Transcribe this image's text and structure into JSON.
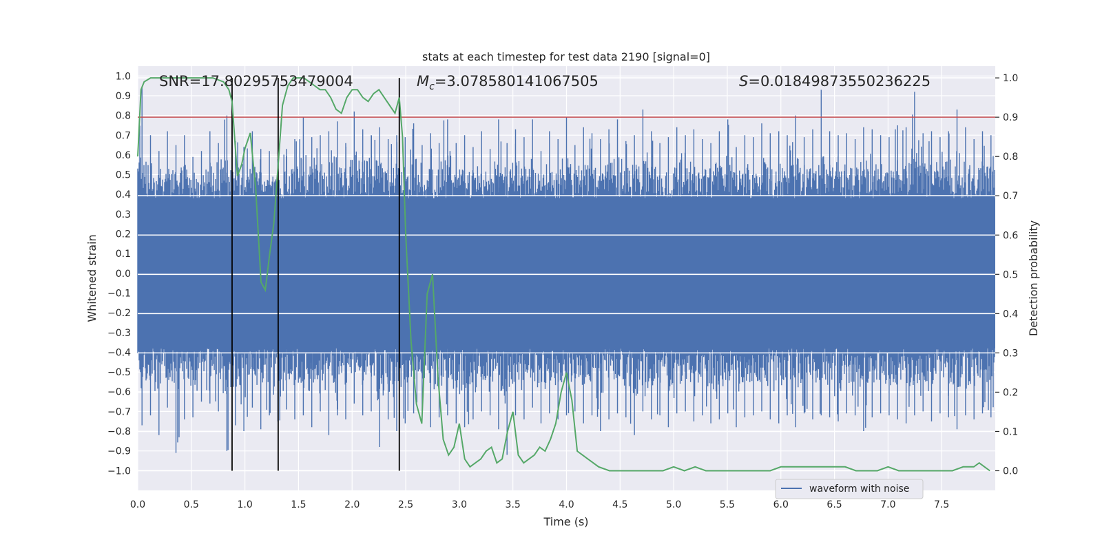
{
  "chart_data": {
    "type": "line",
    "title": "stats at each timestep for test data 2190 [signal=0]",
    "xlabel": "Time (s)",
    "ylabel": "Whitened strain",
    "y2label": "Detection probability",
    "xlim": [
      0.0,
      8.0
    ],
    "ylim": [
      -1.1,
      1.05
    ],
    "y2lim": [
      -0.05,
      1.03
    ],
    "xticks": [
      "0.0",
      "0.5",
      "1.0",
      "1.5",
      "2.0",
      "2.5",
      "3.0",
      "3.5",
      "4.0",
      "4.5",
      "5.0",
      "5.5",
      "6.0",
      "6.5",
      "7.0",
      "7.5"
    ],
    "yticks": [
      "1.0",
      "0.9",
      "0.8",
      "0.7",
      "0.6",
      "0.5",
      "0.4",
      "0.3",
      "0.2",
      "0.1",
      "0.0",
      "−0.1",
      "−0.2",
      "−0.3",
      "−0.4",
      "−0.5",
      "−0.6",
      "−0.7",
      "−0.8",
      "−0.9",
      "−1.0"
    ],
    "y2ticks": [
      "1.0",
      "0.9",
      "0.8",
      "0.7",
      "0.6",
      "0.5",
      "0.4",
      "0.3",
      "0.2",
      "0.1",
      "0.0"
    ],
    "grid": true,
    "legend_placement": "lower-right",
    "annotations": {
      "snr": "SNR=17.80295753479004",
      "mc_symbol": "M",
      "mc_sub": "c",
      "mc_value": "=3.078580141067505",
      "s_symbol": "S",
      "s_value": "=0.01849873550236225"
    },
    "vertical_markers": [
      0.88,
      1.31,
      2.44
    ],
    "threshold": 0.9,
    "waveform": {
      "name": "waveform with noise",
      "color": "#4c72b0",
      "envelope_pos": [
        0.94,
        0.7,
        0.62,
        0.72,
        0.65,
        0.7,
        0.59,
        0.62,
        0.72,
        0.66,
        0.8,
        0.67,
        0.64,
        0.72,
        0.63,
        0.62,
        0.58,
        0.63,
        0.68,
        0.79,
        0.69,
        0.7,
        0.72,
        0.77,
        0.66,
        0.82,
        0.73,
        0.7,
        0.74,
        0.68,
        0.7,
        0.69,
        0.76,
        0.65,
        0.71,
        0.66,
        0.78,
        0.66,
        0.7,
        0.64,
        0.72,
        0.63,
        0.78,
        0.66,
        0.73,
        0.69,
        0.78,
        0.62,
        0.72,
        0.68,
        0.79,
        0.65,
        0.74,
        0.71,
        0.68,
        0.73,
        0.78,
        0.67,
        0.7,
        0.83,
        0.72,
        0.66,
        0.69,
        0.74,
        0.7,
        0.73,
        0.68,
        0.66,
        0.72,
        0.78,
        0.64,
        0.7,
        0.69,
        0.76,
        0.71,
        0.72,
        0.7,
        0.8,
        0.69,
        0.73,
        0.93,
        0.72,
        0.7,
        0.71,
        0.68,
        0.74,
        0.73,
        0.7,
        0.69,
        0.75,
        0.74,
        0.92,
        0.71,
        0.72,
        0.69,
        0.72,
        0.83,
        0.74,
        0.68,
        0.72,
        0.7
      ],
      "envelope_neg": [
        -0.77,
        -0.72,
        -0.82,
        -0.68,
        -0.91,
        -0.74,
        -0.73,
        -0.65,
        -0.66,
        -0.7,
        -0.9,
        -0.77,
        -0.8,
        -0.68,
        -0.79,
        -0.72,
        -0.75,
        -0.69,
        -0.74,
        -0.72,
        -0.78,
        -0.7,
        -0.82,
        -0.72,
        -0.74,
        -0.66,
        -0.72,
        -0.7,
        -0.88,
        -0.74,
        -0.8,
        -0.76,
        -0.71,
        -0.7,
        -0.78,
        -0.73,
        -0.72,
        -0.76,
        -0.78,
        -0.74,
        -0.7,
        -0.72,
        -0.79,
        -0.92,
        -0.72,
        -0.74,
        -0.68,
        -0.76,
        -0.71,
        -0.74,
        -0.72,
        -0.7,
        -0.76,
        -0.72,
        -0.8,
        -0.74,
        -0.71,
        -0.73,
        -0.82,
        -0.7,
        -0.74,
        -0.72,
        -0.78,
        -0.71,
        -0.7,
        -0.75,
        -0.72,
        -0.76,
        -0.74,
        -0.71,
        -0.78,
        -0.73,
        -0.72,
        -0.7,
        -0.74,
        -0.76,
        -0.72,
        -0.78,
        -0.71,
        -0.74,
        -0.72,
        -0.73,
        -0.75,
        -0.71,
        -0.72,
        -0.8,
        -0.73,
        -0.71,
        -0.72,
        -0.74,
        -0.76,
        -0.72,
        -0.7,
        -0.75,
        -0.71,
        -0.73,
        -0.79,
        -0.72,
        -0.74,
        -0.71,
        -0.73
      ]
    },
    "probability": {
      "color": "#55a868",
      "x": [
        0.0,
        0.03,
        0.06,
        0.12,
        0.2,
        0.3,
        0.4,
        0.5,
        0.6,
        0.7,
        0.8,
        0.85,
        0.88,
        0.93,
        0.97,
        1.0,
        1.05,
        1.1,
        1.15,
        1.19,
        1.23,
        1.27,
        1.31,
        1.35,
        1.4,
        1.45,
        1.5,
        1.55,
        1.6,
        1.65,
        1.7,
        1.75,
        1.8,
        1.85,
        1.9,
        1.95,
        2.0,
        2.05,
        2.1,
        2.15,
        2.2,
        2.25,
        2.3,
        2.35,
        2.4,
        2.44,
        2.47,
        2.5,
        2.55,
        2.6,
        2.65,
        2.7,
        2.75,
        2.8,
        2.85,
        2.9,
        2.95,
        3.0,
        3.05,
        3.1,
        3.15,
        3.2,
        3.25,
        3.3,
        3.35,
        3.4,
        3.45,
        3.5,
        3.55,
        3.6,
        3.65,
        3.7,
        3.75,
        3.8,
        3.85,
        3.9,
        3.95,
        4.0,
        4.05,
        4.1,
        4.15,
        4.2,
        4.3,
        4.4,
        4.5,
        4.6,
        4.7,
        4.8,
        4.9,
        5.0,
        5.1,
        5.2,
        5.3,
        5.4,
        5.5,
        5.6,
        5.7,
        5.8,
        5.9,
        6.0,
        6.1,
        6.2,
        6.3,
        6.4,
        6.5,
        6.6,
        6.7,
        6.8,
        6.9,
        7.0,
        7.1,
        7.2,
        7.3,
        7.4,
        7.5,
        7.6,
        7.7,
        7.8,
        7.85,
        7.9,
        7.95
      ],
      "y": [
        0.8,
        0.97,
        0.99,
        1.0,
        1.0,
        1.0,
        1.0,
        1.0,
        1.0,
        1.0,
        0.99,
        0.97,
        0.94,
        0.75,
        0.78,
        0.82,
        0.86,
        0.72,
        0.48,
        0.46,
        0.55,
        0.63,
        0.78,
        0.93,
        0.98,
        1.0,
        1.0,
        1.0,
        0.99,
        0.98,
        0.97,
        0.97,
        0.95,
        0.92,
        0.91,
        0.95,
        0.97,
        0.97,
        0.95,
        0.94,
        0.96,
        0.97,
        0.95,
        0.93,
        0.91,
        0.95,
        0.85,
        0.6,
        0.33,
        0.17,
        0.12,
        0.45,
        0.5,
        0.24,
        0.08,
        0.04,
        0.06,
        0.12,
        0.03,
        0.01,
        0.02,
        0.03,
        0.05,
        0.06,
        0.02,
        0.03,
        0.1,
        0.15,
        0.04,
        0.02,
        0.03,
        0.04,
        0.06,
        0.05,
        0.08,
        0.12,
        0.2,
        0.25,
        0.18,
        0.05,
        0.04,
        0.03,
        0.01,
        0.0,
        0.0,
        0.0,
        0.0,
        0.0,
        0.0,
        0.01,
        0.0,
        0.01,
        0.0,
        0.0,
        0.0,
        0.0,
        0.0,
        0.0,
        0.0,
        0.01,
        0.01,
        0.01,
        0.01,
        0.01,
        0.01,
        0.01,
        0.0,
        0.0,
        0.0,
        0.01,
        0.0,
        0.0,
        0.0,
        0.0,
        0.0,
        0.0,
        0.01,
        0.01,
        0.02,
        0.01,
        0.0
      ]
    },
    "threshold_color": "#c44e52",
    "marker_color": "#000000",
    "background_color": "#eaeaf2",
    "grid_color": "#ffffff"
  }
}
